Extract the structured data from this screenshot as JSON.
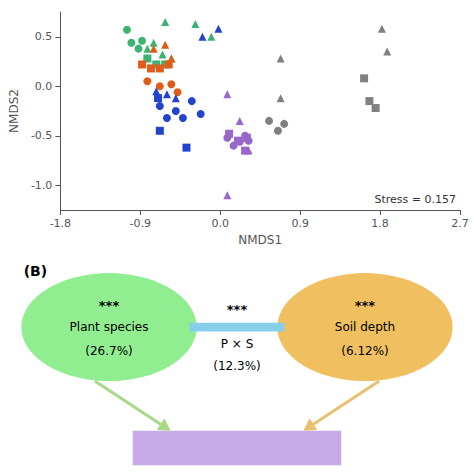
{
  "chart_data": [
    {
      "type": "scatter",
      "xlabel": "NMDS1",
      "ylabel": "NMDS2",
      "xlim": [
        -1.8,
        2.7
      ],
      "ylim": [
        -1.25,
        0.75
      ],
      "xticks": [
        -1.8,
        -0.9,
        {
          "value": 0,
          "label": "0.0"
        },
        0.9,
        1.8,
        2.7
      ],
      "yticks": [
        {
          "value": -1,
          "label": "-1.0"
        },
        -0.5,
        {
          "value": 0,
          "label": "0.0"
        },
        0.5
      ],
      "grid": false,
      "annotations": [
        "Stress = 0.157"
      ],
      "series": [
        {
          "color": "#3cb371",
          "marker": "circle",
          "x": [
            -1.05,
            -1.0,
            -0.92,
            -0.88
          ],
          "y": [
            0.57,
            0.44,
            0.38,
            0.46
          ]
        },
        {
          "color": "#3cb371",
          "marker": "triangle",
          "x": [
            -0.62,
            -0.75,
            -0.82,
            -0.65,
            -0.55,
            -0.28,
            -0.1
          ],
          "y": [
            0.65,
            0.44,
            0.38,
            0.32,
            0.28,
            0.63,
            0.5
          ]
        },
        {
          "color": "#3cb371",
          "marker": "square",
          "x": [
            -0.82,
            -0.72,
            -0.62
          ],
          "y": [
            0.28,
            0.22,
            0.22
          ]
        },
        {
          "color": "#e05c1a",
          "marker": "circle",
          "x": [
            -0.82,
            -0.68,
            -0.55,
            -0.48
          ],
          "y": [
            0.05,
            0.0,
            0.02,
            -0.06
          ]
        },
        {
          "color": "#e05c1a",
          "marker": "triangle",
          "x": [
            -0.75,
            -0.62,
            -0.55
          ],
          "y": [
            0.38,
            0.42,
            0.28
          ]
        },
        {
          "color": "#e05c1a",
          "marker": "square",
          "x": [
            -0.88,
            -0.78,
            -0.68,
            -0.58
          ],
          "y": [
            0.22,
            0.18,
            0.18,
            0.22
          ]
        },
        {
          "color": "#2244cc",
          "marker": "circle",
          "x": [
            -0.68,
            -0.6,
            -0.5,
            -0.42,
            -0.32,
            -0.22
          ],
          "y": [
            -0.2,
            -0.32,
            -0.25,
            -0.32,
            -0.15,
            -0.28
          ]
        },
        {
          "color": "#2244cc",
          "marker": "triangle",
          "x": [
            -0.72,
            -0.6,
            -0.5,
            -0.2,
            -0.02
          ],
          "y": [
            -0.05,
            -0.08,
            -0.12,
            0.5,
            0.58
          ]
        },
        {
          "color": "#2244cc",
          "marker": "square",
          "x": [
            -0.7,
            -0.68,
            -0.38
          ],
          "y": [
            -0.12,
            -0.45,
            -0.62
          ]
        },
        {
          "color": "#9966cc",
          "marker": "circle",
          "x": [
            0.08,
            0.15,
            0.22,
            0.28,
            0.32
          ],
          "y": [
            -0.52,
            -0.6,
            -0.56,
            -0.5,
            -0.55
          ]
        },
        {
          "color": "#9966cc",
          "marker": "triangle",
          "x": [
            0.08,
            0.22,
            0.32,
            0.08
          ],
          "y": [
            -0.08,
            -0.35,
            -0.65,
            -1.1
          ]
        },
        {
          "color": "#9966cc",
          "marker": "square",
          "x": [
            0.1,
            0.2,
            0.3,
            0.28
          ],
          "y": [
            -0.48,
            -0.55,
            -0.52,
            -0.65
          ]
        },
        {
          "color": "#808080",
          "marker": "circle",
          "x": [
            0.55,
            0.65,
            0.72
          ],
          "y": [
            -0.35,
            -0.45,
            -0.38
          ]
        },
        {
          "color": "#808080",
          "marker": "triangle",
          "x": [
            0.68,
            0.68,
            1.82,
            1.88
          ],
          "y": [
            0.28,
            -0.12,
            0.58,
            0.35
          ]
        },
        {
          "color": "#808080",
          "marker": "square",
          "x": [
            1.62,
            1.68,
            1.75
          ],
          "y": [
            0.08,
            -0.15,
            -0.22
          ]
        }
      ]
    },
    {
      "type": "diagram",
      "title": "(B)",
      "series": [
        {
          "type": "ellipse",
          "name": "Plant species",
          "color": "#90ee90",
          "annotations": [
            "***"
          ],
          "values": [
            26.7
          ],
          "value_labels": [
            "(26.7%)"
          ]
        },
        {
          "type": "bar",
          "name": "P × S",
          "color": "#87ceeb",
          "annotations": [
            "***"
          ],
          "values": [
            12.3
          ],
          "value_labels": [
            "(12.3%)"
          ]
        },
        {
          "type": "ellipse",
          "name": "Soil depth",
          "color": "#f0c060",
          "annotations": [
            "***"
          ],
          "values": [
            6.12
          ],
          "value_labels": [
            "(6.12%)"
          ]
        },
        {
          "type": "box",
          "color": "#c8aae8"
        },
        {
          "type": "arrow",
          "color": "#a8d888"
        },
        {
          "type": "arrow",
          "color": "#e8c070"
        }
      ]
    }
  ]
}
